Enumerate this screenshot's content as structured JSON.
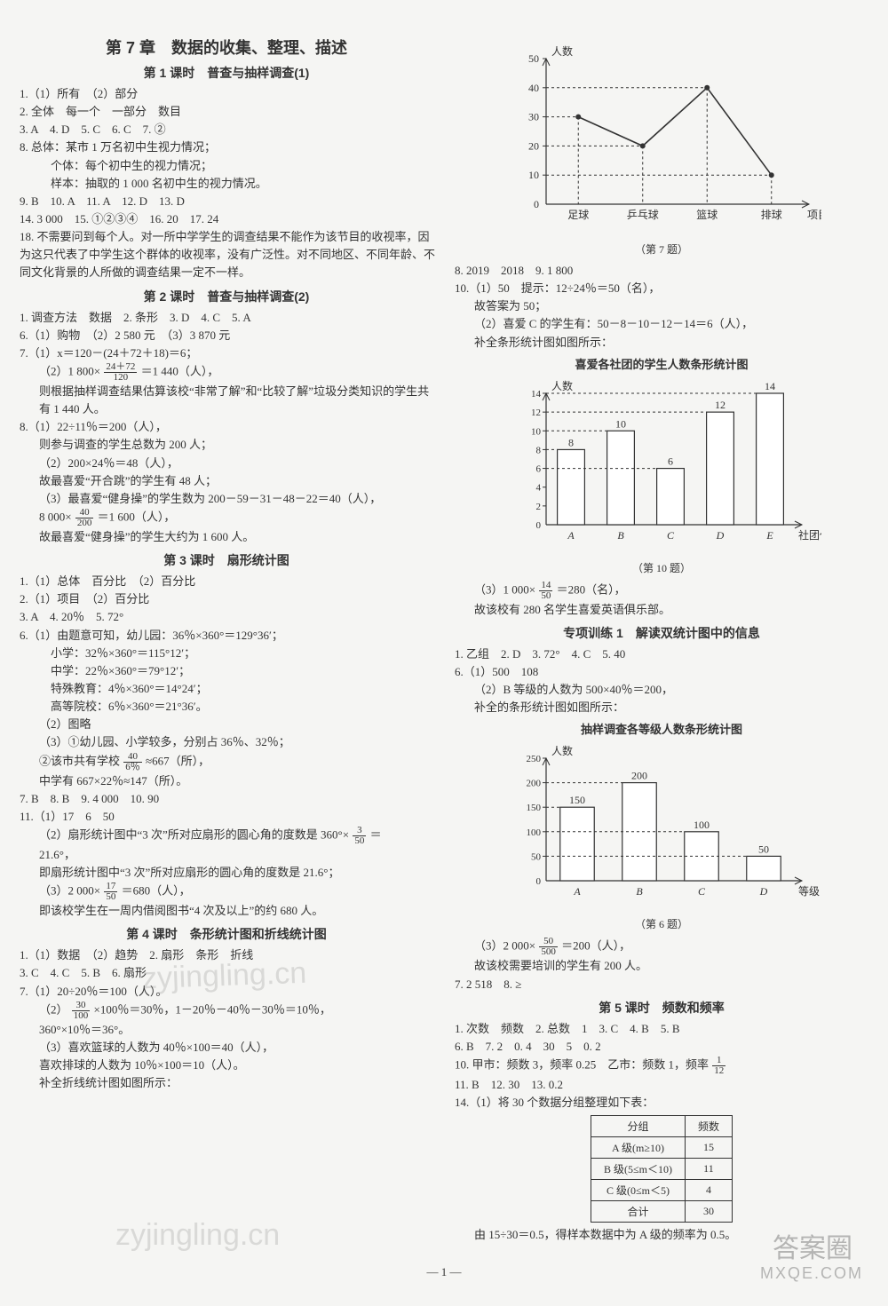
{
  "chapter_title": "第 7 章　数据的收集、整理、描述",
  "lesson1_title": "第 1 课时　普查与抽样调查(1)",
  "l1": [
    "1.（1）所有　（2）部分",
    "2. 全体　每一个　一部分　数目",
    "3. A　4. D　5. C　6. C　7. ②",
    "8. 总体：某市 1 万名初中生视力情况；",
    "　个体：每个初中生的视力情况；",
    "　样本：抽取的 1 000 名初中生的视力情况。",
    "9. B　10. A　11. A　12. D　13. D",
    "14. 3 000　15. ①②③④　16. 20　17. 24",
    "18. 不需要问到每个人。对一所中学学生的调查结果不能作为该节目的收视率，因为这只代表了中学生这个群体的收视率，没有广泛性。对不同地区、不同年龄、不同文化背景的人所做的调查结果一定不一样。"
  ],
  "lesson2_title": "第 2 课时　普查与抽样调查(2)",
  "l2a": [
    "1. 调查方法　数据　2. 条形　3. D　4. C　5. A",
    "6.（1）购物　（2）2 580 元　（3）3 870 元",
    "7.（1）x＝120－(24＋72＋18)＝6；"
  ],
  "l2_frac1_pre": "（2）1 800×",
  "l2_frac1_num": "24＋72",
  "l2_frac1_den": "120",
  "l2_frac1_post": "＝1 440（人），",
  "l2b": [
    "则根据抽样调查结果估算该校“非常了解”和“比较了解”垃圾分类知识的学生共有 1 440 人。",
    "8.（1）22÷11％＝200（人），",
    "则参与调查的学生总数为 200 人；",
    "（2）200×24％＝48（人），",
    "故最喜爱“开合跳”的学生有 48 人；",
    "（3）最喜爱“健身操”的学生数为 200－59－31－48－22＝40（人），"
  ],
  "l2_frac2_pre": "8 000×",
  "l2_frac2_num": "40",
  "l2_frac2_den": "200",
  "l2_frac2_post": "＝1 600（人），",
  "l2c": "故最喜爱“健身操”的学生大约为 1 600 人。",
  "lesson3_title": "第 3 课时　扇形统计图",
  "l3": [
    "1.（1）总体　百分比　（2）百分比",
    "2.（1）项目　（2）百分比",
    "3. A　4. 20％　5. 72°",
    "6.（1）由题意可知，幼儿园：36％×360°＝129°36′；",
    "　小学：32％×360°＝115°12′；",
    "　中学：22％×360°＝79°12′；",
    "　特殊教育：4％×360°＝14°24′；",
    "　高等院校：6％×360°＝21°36′。",
    "（2）图略",
    "（3）①幼儿园、小学较多，分别占 36％、32％；"
  ],
  "l3_frac1_pre": "②该市共有学校",
  "l3_frac1_num": "40",
  "l3_frac1_den": "6％",
  "l3_frac1_post": "≈667（所），",
  "l3d": [
    "中学有 667×22％≈147（所）。",
    "7. B　8. B　9. 4 000　10. 90",
    "11.（1）17　6　50"
  ],
  "l3_frac2_pre": "（2）扇形统计图中“3 次”所对应扇形的圆心角的度数是 360°×",
  "l3_frac2_num": "3",
  "l3_frac2_den": "50",
  "l3_frac2_post": "＝",
  "l3e": [
    "21.6°，",
    "即扇形统计图中“3 次”所对应扇形的圆心角的度数是 21.6°；"
  ],
  "l3_frac3_pre": "（3）2 000×",
  "l3_frac3_num": "17",
  "l3_frac3_den": "50",
  "l3_frac3_post": "＝680（人），",
  "l3f": "即该校学生在一周内借阅图书“4 次及以上”的约 680 人。",
  "lesson4_title": "第 4 课时　条形统计图和折线统计图",
  "l4a": [
    "1.（1）数据　（2）趋势　2. 扇形　条形　折线",
    "3. C　4. C　5. B　6. 扇形",
    "7.（1）20÷20％＝100（人）。"
  ],
  "l4_frac1_pre": "（2）",
  "l4_frac1_num": "30",
  "l4_frac1_den": "100",
  "l4_frac1_post": "×100％＝30％，1－20％－40％－30％＝10％，",
  "l4b": [
    "360°×10％＝36°。",
    "（3）喜欢篮球的人数为 40％×100＝40（人），",
    "喜欢排球的人数为 10％×100＝10（人）。",
    "补全折线统计图如图所示："
  ],
  "chart7": {
    "caption": "（第 7 题）",
    "ylabel": "人数",
    "xlabel": "项目",
    "ymax": 50,
    "ytick": 10,
    "xcats": [
      "足球",
      "乒乓球",
      "篮球",
      "排球"
    ],
    "values": [
      30,
      20,
      40,
      10
    ],
    "line_color": "#333",
    "bg": "#f5f5f3"
  },
  "r1": [
    "8. 2019　2018　9. 1 800",
    "10.（1）50　提示：12÷24％＝50（名），",
    "故答案为 50；",
    "（2）喜爱 C 的学生有：50－8－10－12－14＝6（人），",
    "补全条形统计图如图所示："
  ],
  "chart10": {
    "title": "喜爱各社团的学生人数条形统计图",
    "caption": "（第 10 题）",
    "ylabel": "人数",
    "xlabel": "社团代号",
    "ymax": 14,
    "ytick": 2,
    "xcats": [
      "A",
      "B",
      "C",
      "D",
      "E"
    ],
    "values": [
      8,
      10,
      6,
      12,
      14
    ],
    "bar_color": "#ffffff",
    "bar_border": "#333"
  },
  "r_frac1_pre": "（3）1 000×",
  "r_frac1_num": "14",
  "r_frac1_den": "50",
  "r_frac1_post": "＝280（名），",
  "r2": "故该校有 280 名学生喜爱英语俱乐部。",
  "special1_title": "专项训练 1　解读双统计图中的信息",
  "r3": [
    "1. 乙组　2. D　3. 72°　4. C　5. 40",
    "6.（1）500　108",
    "（2）B 等级的人数为 500×40％＝200，",
    "补全的条形统计图如图所示："
  ],
  "chart6": {
    "title": "抽样调查各等级人数条形统计图",
    "caption": "（第 6 题）",
    "ylabel": "人数",
    "xlabel": "等级",
    "ymax": 250,
    "ytick": 50,
    "xcats": [
      "A",
      "B",
      "C",
      "D"
    ],
    "values": [
      150,
      200,
      100,
      50
    ],
    "bar_color": "#ffffff",
    "bar_border": "#333"
  },
  "r_frac2_pre": "（3）2 000×",
  "r_frac2_num": "50",
  "r_frac2_den": "500",
  "r_frac2_post": "＝200（人），",
  "r4": [
    "故该校需要培训的学生有 200 人。",
    "7. 2 518　8. ≥"
  ],
  "lesson5_title": "第 5 课时　频数和频率",
  "l5a": [
    "1. 次数　频数　2. 总数　1　3. C　4. B　5. B",
    "6. B　7. 2　0. 4　30　5　0. 2"
  ],
  "l5_freq_pre": "10. 甲市：频数 3，频率 0.25　乙市：频数 1，频率",
  "l5_freq_num": "1",
  "l5_freq_den": "12",
  "l5b": [
    "11. B　12. 30　13. 0.2",
    "14.（1）将 30 个数据分组整理如下表："
  ],
  "table14": {
    "headers": [
      "分组",
      "频数"
    ],
    "rows": [
      [
        "A 级(m≥10)",
        "15"
      ],
      [
        "B 级(5≤m＜10)",
        "11"
      ],
      [
        "C 级(0≤m＜5)",
        "4"
      ],
      [
        "合计",
        "30"
      ]
    ]
  },
  "r5": "由 15÷30＝0.5，得样本数据中为 A 级的频率为 0.5。",
  "page_num": "— 1 —",
  "wm1": "zyjingling.cn",
  "wm2": "答案圈",
  "wm3": "MXQE.COM"
}
